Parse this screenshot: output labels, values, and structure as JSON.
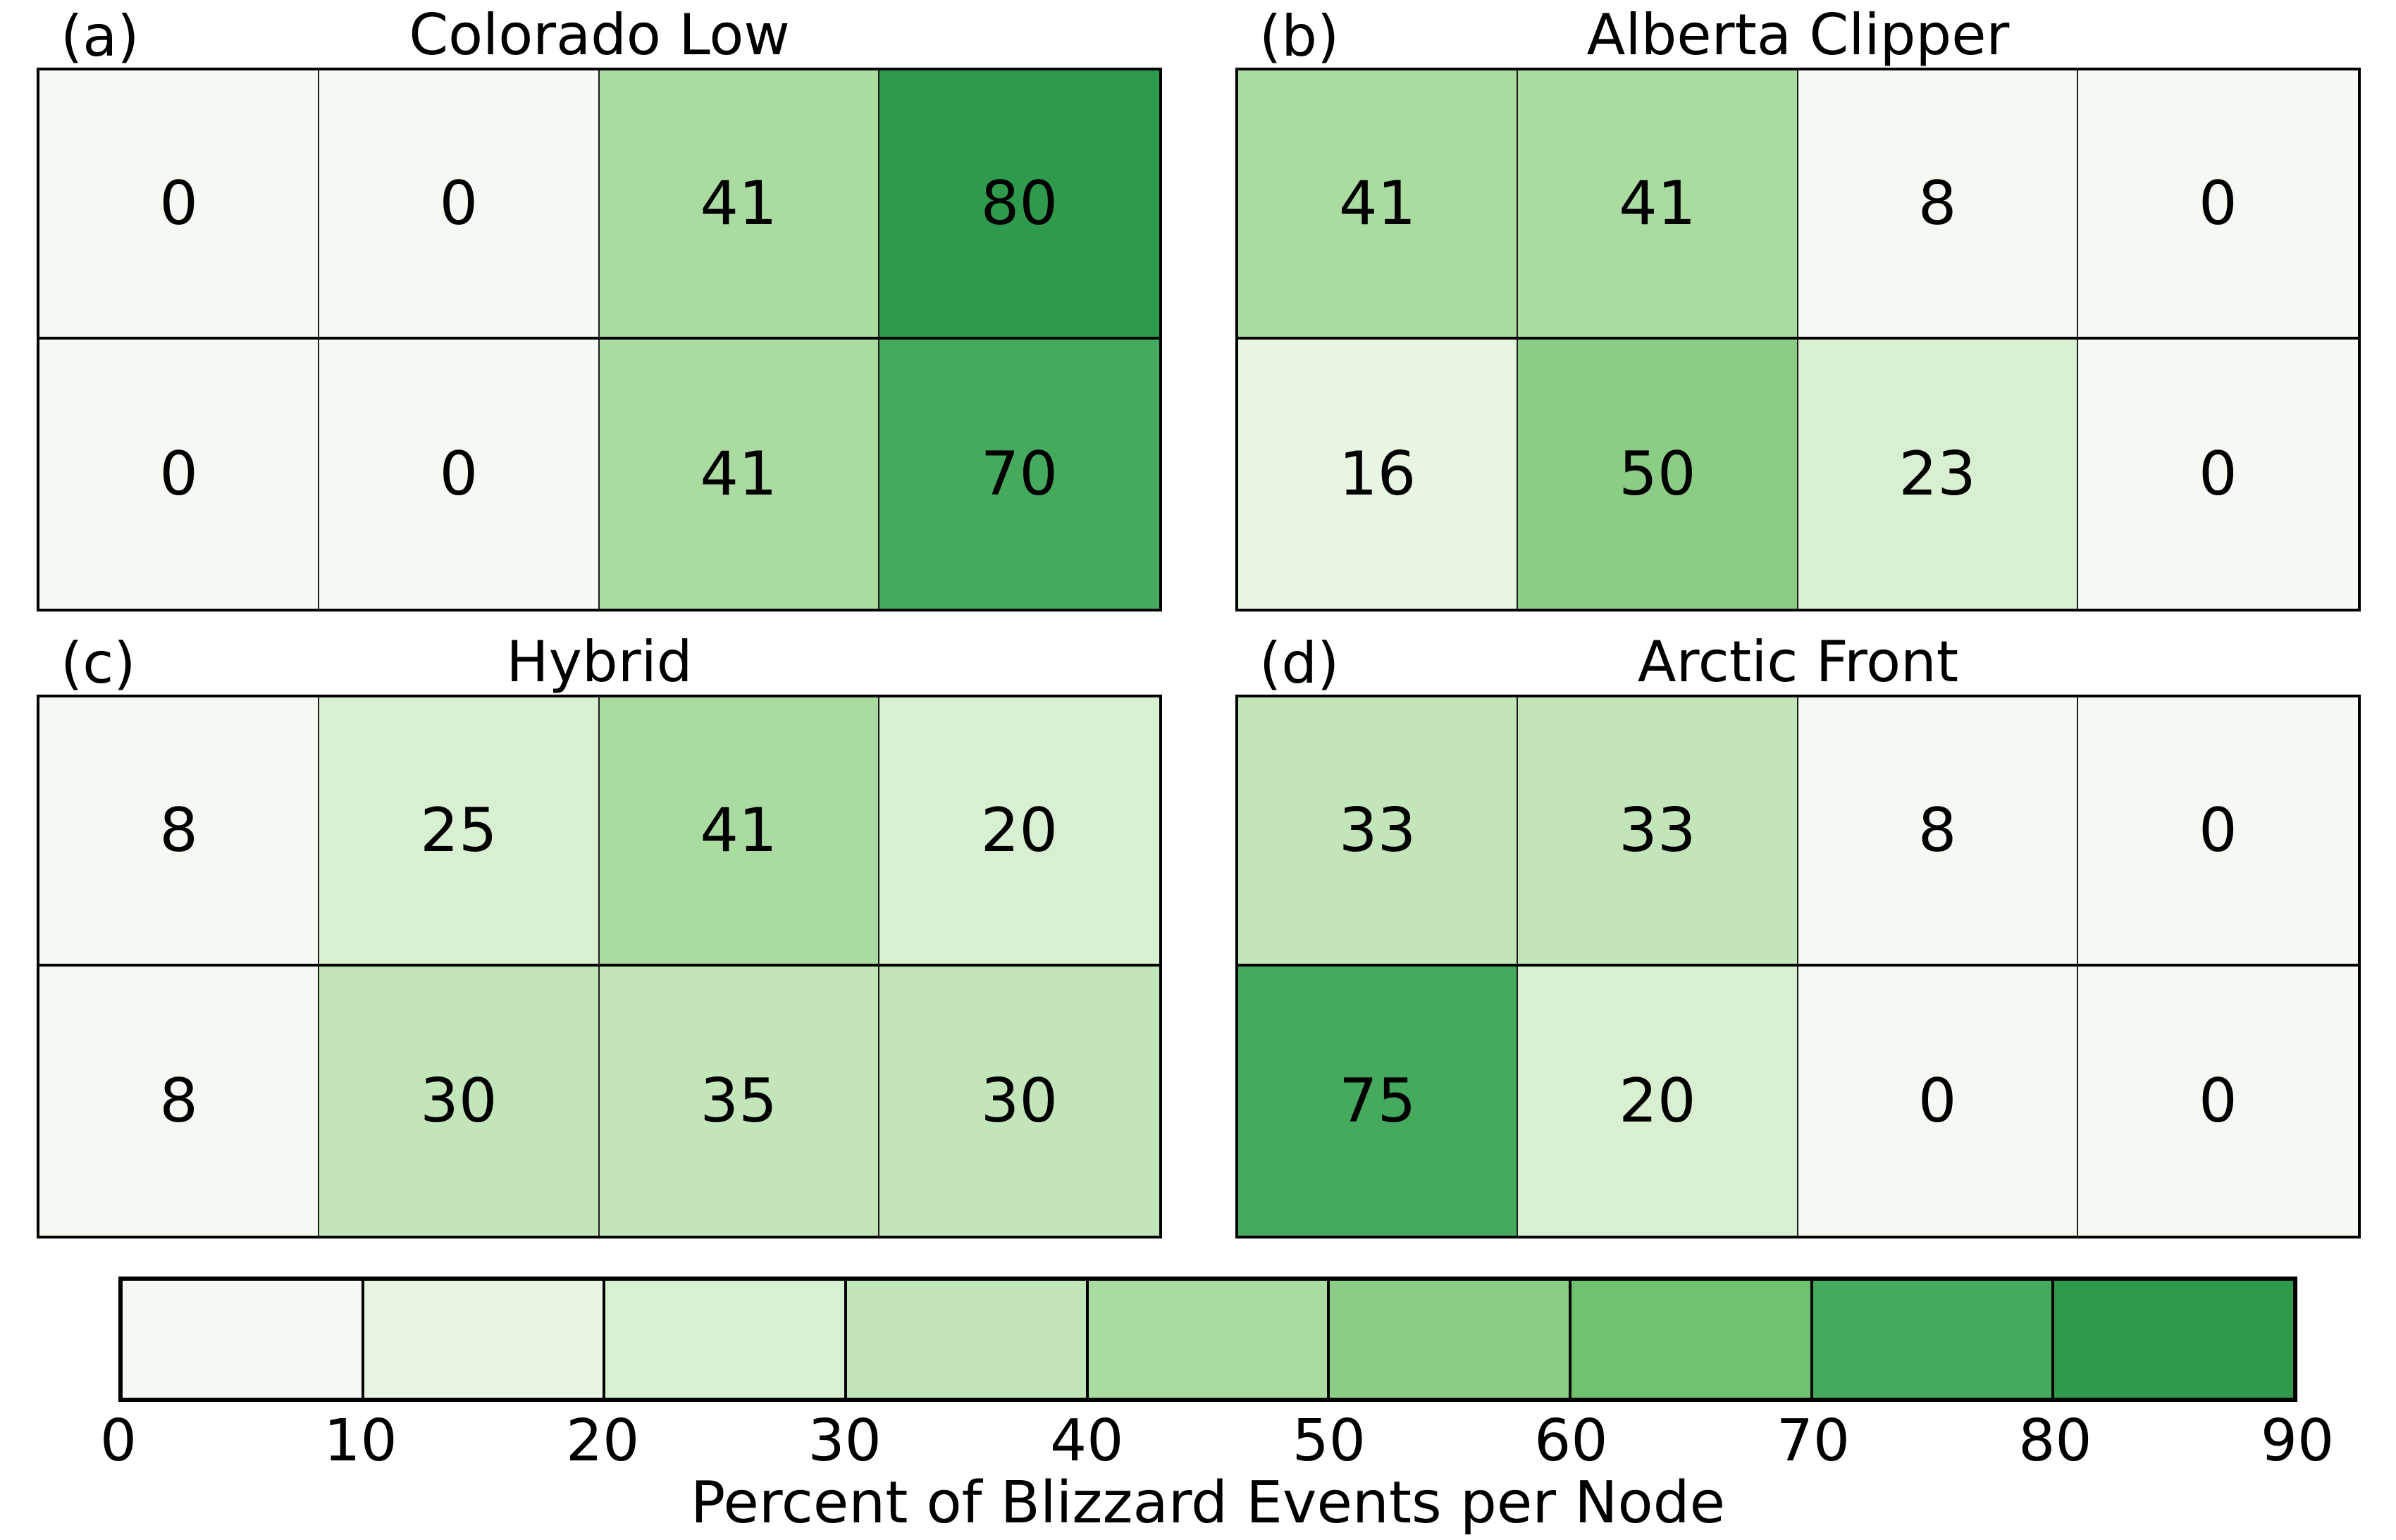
{
  "chart_data": {
    "type": "heatmap",
    "description": "Four 2x4 self-organizing-map node heatmaps sharing one discrete Greens colorbar",
    "panels": [
      {
        "label": "(a)",
        "title": "Colorado Low",
        "rows": 2,
        "cols": 4,
        "values": [
          [
            0,
            0,
            41,
            80
          ],
          [
            0,
            0,
            41,
            70
          ]
        ]
      },
      {
        "label": "(b)",
        "title": "Alberta Clipper",
        "rows": 2,
        "cols": 4,
        "values": [
          [
            41,
            41,
            8,
            0
          ],
          [
            16,
            50,
            23,
            0
          ]
        ]
      },
      {
        "label": "(c)",
        "title": "Hybrid",
        "rows": 2,
        "cols": 4,
        "values": [
          [
            8,
            25,
            41,
            20
          ],
          [
            8,
            30,
            35,
            30
          ]
        ]
      },
      {
        "label": "(d)",
        "title": "Arctic Front",
        "rows": 2,
        "cols": 4,
        "values": [
          [
            33,
            33,
            8,
            0
          ],
          [
            75,
            20,
            0,
            0
          ]
        ]
      }
    ],
    "colorbar": {
      "label": "Percent of Blizzard Events per Node",
      "ticks": [
        0,
        10,
        20,
        30,
        40,
        50,
        60,
        70,
        80,
        90
      ],
      "range": [
        0,
        90
      ],
      "bin_size": 10,
      "orientation": "horizontal",
      "colors": [
        "#f4faf1",
        "#e9f5e3",
        "#d9efd1",
        "#c2e6ba",
        "#aadba1",
        "#8bcd85",
        "#6fc06f",
        "#45aa5d",
        "#2f9a4e"
      ]
    },
    "value_unit": "percent",
    "grid": false,
    "text_color": "#000000",
    "background_color": "#ffffff"
  }
}
